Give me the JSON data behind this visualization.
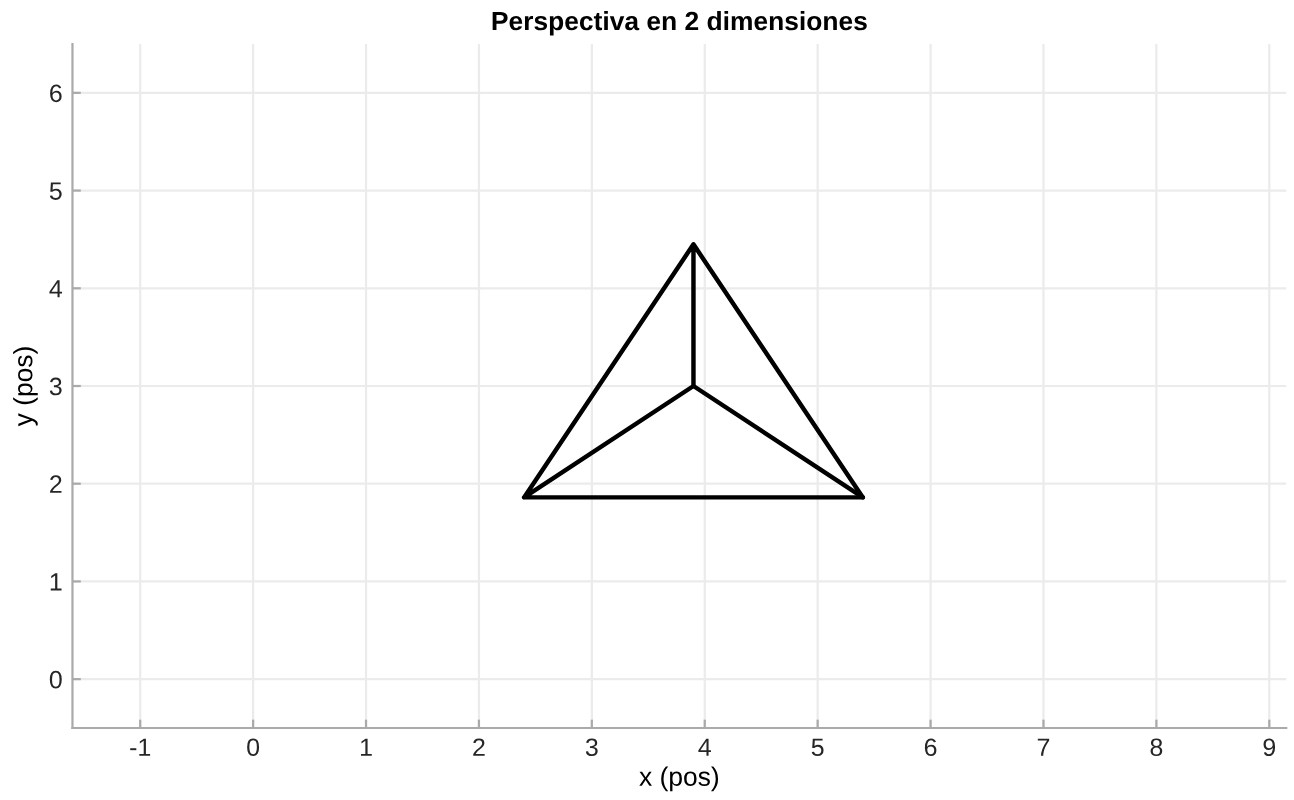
{
  "chart_data": {
    "type": "line",
    "title": "Perspectiva en 2 dimensiones",
    "xlabel": "x (pos)",
    "ylabel": "y (pos)",
    "series": [
      {
        "color": "#000000",
        "x": [
          3.9,
          2.4,
          5.4,
          3.9,
          3.9,
          2.4
        ],
        "values": [
          4.45,
          1.86,
          1.86,
          4.45,
          3.0,
          1.86
        ]
      },
      {
        "color": "#000000",
        "x": [
          3.9,
          5.4
        ],
        "values": [
          3.0,
          1.86
        ]
      }
    ],
    "xlim": [
      -1.6,
      9.15
    ],
    "ylim": [
      -0.5,
      6.5
    ],
    "xticks": [
      -1,
      0,
      1,
      2,
      3,
      4,
      5,
      6,
      7,
      8,
      9
    ],
    "yticks": [
      0,
      1,
      2,
      3,
      4,
      5,
      6
    ],
    "grid": true,
    "marker": "none",
    "line_style": "solid"
  }
}
